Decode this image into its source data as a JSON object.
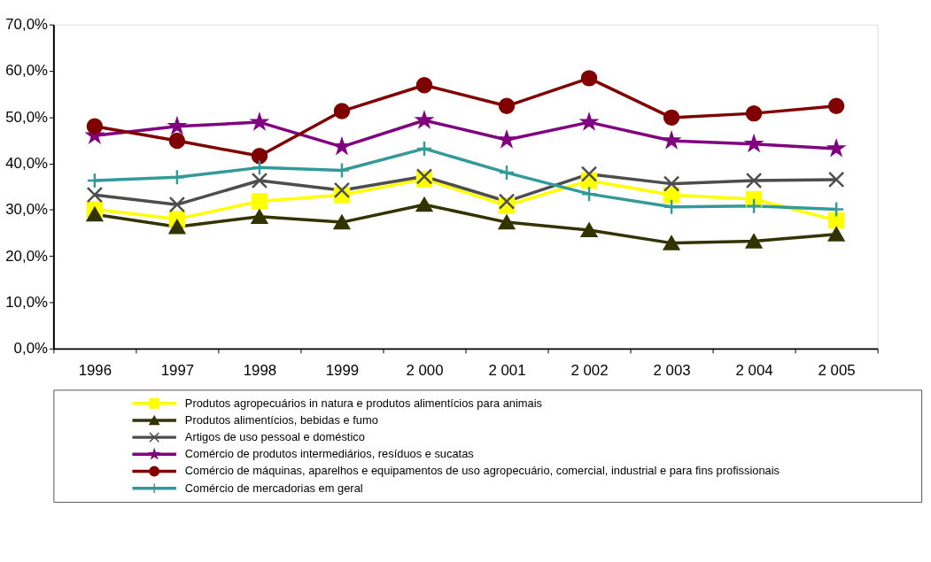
{
  "chart_data": {
    "type": "line",
    "categories": [
      "1996",
      "1997",
      "1998",
      "1999",
      "2 000",
      "2 001",
      "2 002",
      "2 003",
      "2 004",
      "2 005"
    ],
    "ylim": [
      0,
      70
    ],
    "yticks": [
      {
        "value": 0,
        "label": "0,0%"
      },
      {
        "value": 10,
        "label": "10,0%"
      },
      {
        "value": 20,
        "label": "20,0%"
      },
      {
        "value": 30,
        "label": "30,0%"
      },
      {
        "value": 40,
        "label": "40,0%"
      },
      {
        "value": 50,
        "label": "50,0%"
      },
      {
        "value": 60,
        "label": "60,0%"
      },
      {
        "value": 70,
        "label": "70,0%"
      }
    ],
    "grid": false,
    "legend": "bottom",
    "series": [
      {
        "name": "Produtos agropecuários in natura e produtos alimentícios para animais",
        "color": "#ffff00",
        "marker": "square",
        "values": [
          30.1,
          28.0,
          31.8,
          33.2,
          36.6,
          30.9,
          36.3,
          33.2,
          32.3,
          27.7
        ]
      },
      {
        "name": "Produtos alimentícios, bebidas e fumo",
        "color": "#333300",
        "marker": "triangle",
        "values": [
          29.0,
          26.3,
          28.5,
          27.3,
          31.1,
          27.3,
          25.6,
          22.8,
          23.2,
          24.7
        ]
      },
      {
        "name": "Artigos de uso pessoal e doméstico",
        "color": "#4d4d4d",
        "marker": "x",
        "values": [
          33.2,
          31.1,
          36.3,
          34.2,
          37.2,
          31.8,
          37.7,
          35.6,
          36.3,
          36.5
        ]
      },
      {
        "name": "Comércio de produtos intermediários, resíduos e sucatas",
        "color": "#800080",
        "marker": "star",
        "values": [
          46.0,
          48.0,
          48.9,
          43.6,
          49.3,
          45.1,
          48.9,
          44.9,
          44.2,
          43.2
        ]
      },
      {
        "name": "Comércio de máquinas, aparelhos e equipamentos de uso agropecuário, comercial, industrial e para fins profissionais",
        "color": "#800000",
        "marker": "circle",
        "values": [
          48.0,
          44.9,
          41.6,
          51.3,
          56.9,
          52.4,
          58.4,
          49.9,
          50.8,
          52.4
        ]
      },
      {
        "name": "Comércio de mercadorias em geral",
        "color": "#339999",
        "marker": "cross",
        "values": [
          36.3,
          37.0,
          39.1,
          38.5,
          43.2,
          38.0,
          33.4,
          30.6,
          30.8,
          30.1
        ]
      }
    ]
  }
}
